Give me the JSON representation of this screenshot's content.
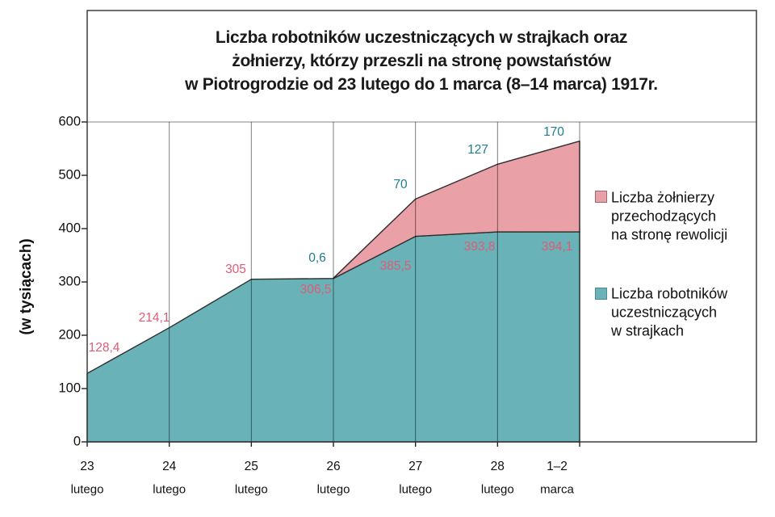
{
  "title": {
    "lines": [
      "Liczba robotników uczestniczących w strajkach oraz",
      "żołnierzy, którzy przeszli na stronę powstaństów",
      "w Piotrogrodzie od 23 lutego do 1 marca (8–14 marca) 1917r."
    ]
  },
  "y_axis": {
    "label": "(w tysiącach)",
    "ticks": [
      "0",
      "100",
      "200",
      "300",
      "400",
      "500",
      "600"
    ]
  },
  "x_axis": {
    "categories": [
      {
        "day": "23",
        "month": "lutego"
      },
      {
        "day": "24",
        "month": "lutego"
      },
      {
        "day": "25",
        "month": "lutego"
      },
      {
        "day": "26",
        "month": "lutego"
      },
      {
        "day": "27",
        "month": "lutego"
      },
      {
        "day": "28",
        "month": "lutego"
      },
      {
        "day": "1–2",
        "month": "marca"
      }
    ]
  },
  "legend": {
    "items": [
      {
        "lines": [
          "Liczba żołnierzy",
          "przechodzących",
          "na stronę rewolicji"
        ],
        "swatch_color": "#E9A0A6",
        "swatch_border": "#9C6B6F"
      },
      {
        "lines": [
          "Liczba robotników",
          "uczestniczących",
          "w strajkach"
        ],
        "swatch_color": "#68B2B8",
        "swatch_border": "#4E8A92"
      }
    ]
  },
  "chart_data": {
    "type": "area",
    "stacked": true,
    "title": "Liczba robotników uczestniczących w strajkach oraz żołnierzy, którzy przeszli na stronę powstaństów w Piotrogrodzie od 23 lutego do 1 marca (8–14 marca) 1917r.",
    "ylabel": "(w tysiącach)",
    "ylim": [
      0,
      600
    ],
    "grid": "vertical-only",
    "legend_position": "right",
    "outline_color": "#2E2E2E",
    "categories": [
      "23 lutego",
      "24 lutego",
      "25 lutego",
      "26 lutego",
      "27 lutego",
      "28 lutego",
      "1–2 marca"
    ],
    "series": [
      {
        "name": "Liczba robotników uczestniczących w strajkach",
        "values": [
          128.4,
          214.1,
          305,
          306.5,
          385.5,
          393.8,
          394.1
        ],
        "point_labels": [
          "128,4",
          "214,1",
          "305",
          "306,5",
          "385,5",
          "393,8",
          "394,1"
        ],
        "fill_color": "#68B2B8",
        "label_color": "#E05C74"
      },
      {
        "name": "Liczba żołnierzy przechodzących na stronę rewolicji",
        "values": [
          0,
          0,
          0,
          0.6,
          70,
          127,
          170
        ],
        "point_labels": [
          "",
          "",
          "",
          "0,6",
          "70",
          "127",
          "170"
        ],
        "fill_color": "#E9A0A6",
        "label_color": "#1D7E8C"
      }
    ]
  }
}
